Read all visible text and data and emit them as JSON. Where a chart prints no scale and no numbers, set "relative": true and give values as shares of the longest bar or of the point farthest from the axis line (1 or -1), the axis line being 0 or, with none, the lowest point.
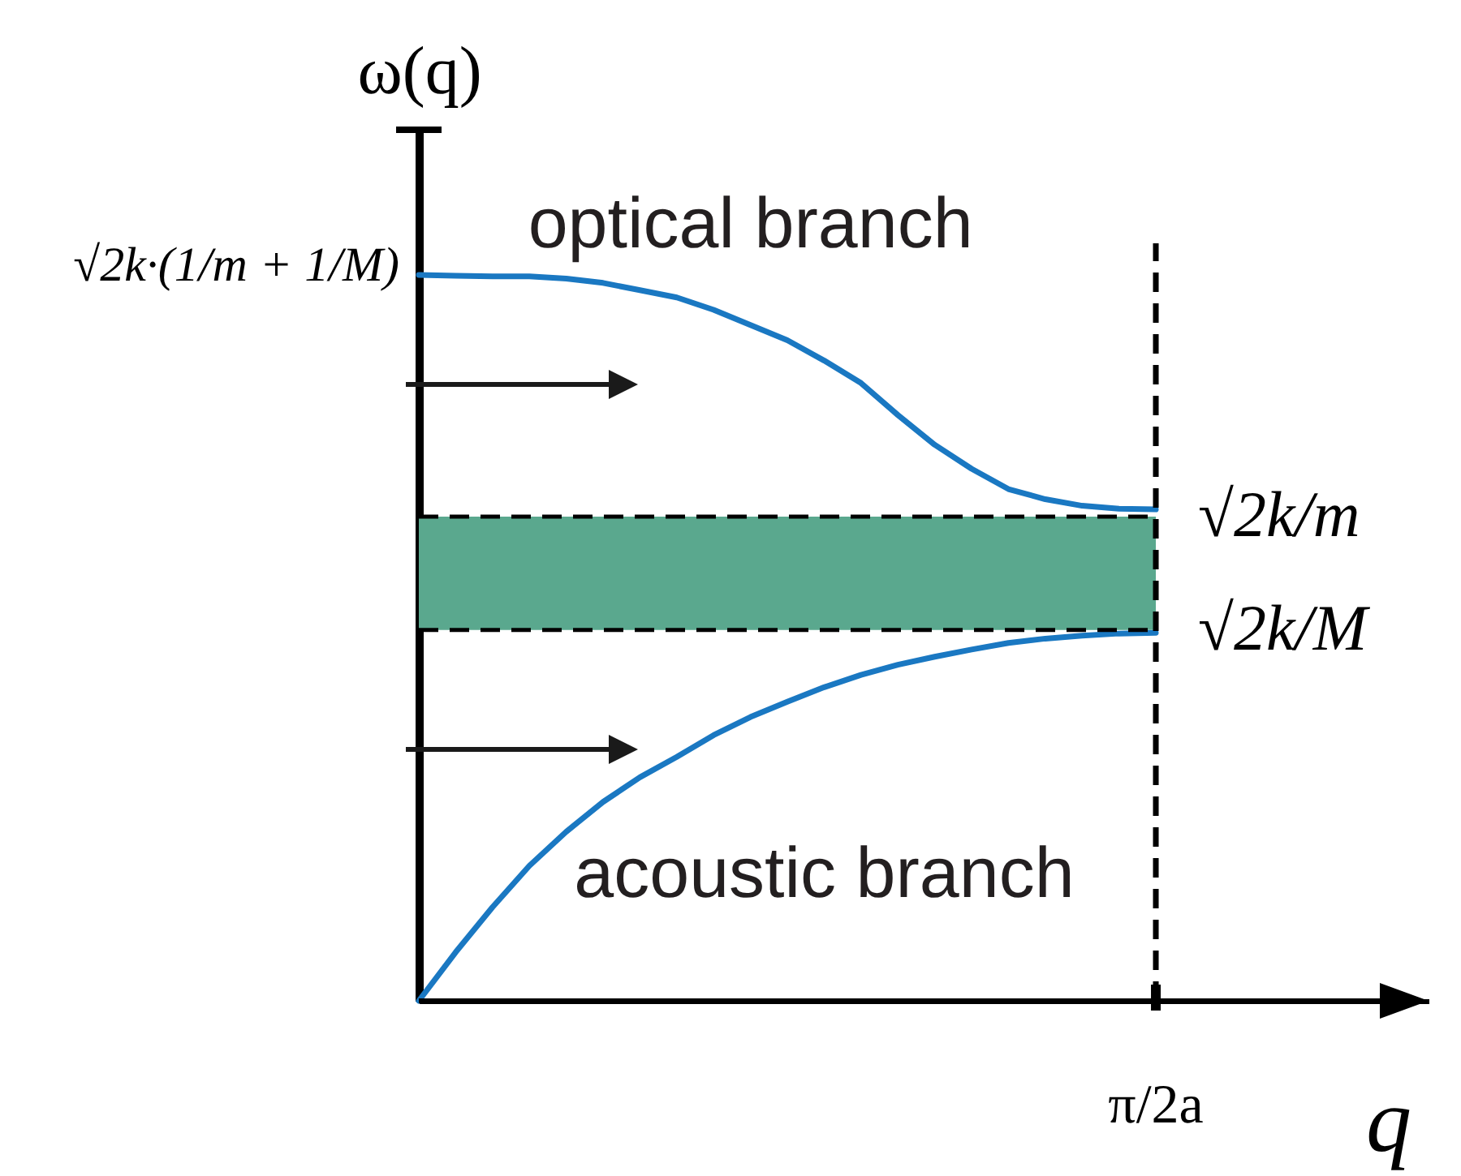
{
  "chart_data": {
    "type": "line",
    "relative": true,
    "xlabel": "q",
    "ylabel": "ω(q)",
    "categories": [
      null,
      null,
      null,
      null,
      null,
      null,
      null,
      null,
      null,
      null,
      null,
      null,
      null,
      null,
      null,
      null,
      null,
      null,
      null,
      null,
      null
    ],
    "series": [
      {
        "name": "optical branch",
        "color": "#1a78c2",
        "values": [
          1.0,
          0.999,
          0.998,
          0.998,
          0.995,
          0.989,
          0.979,
          0.969,
          0.952,
          0.931,
          0.91,
          0.882,
          0.851,
          0.807,
          0.766,
          0.733,
          0.705,
          0.691,
          0.682,
          0.678,
          0.677
        ]
      },
      {
        "name": "acoustic branch",
        "color": "#1a78c2",
        "values": [
          0.0,
          0.067,
          0.129,
          0.186,
          0.233,
          0.274,
          0.308,
          0.336,
          0.366,
          0.391,
          0.412,
          0.432,
          0.449,
          0.463,
          0.474,
          0.484,
          0.493,
          0.499,
          0.503,
          0.506,
          0.507
        ]
      }
    ],
    "bands": [
      {
        "axis": "y",
        "from": 0.511,
        "to": 0.667,
        "color": "#5aa88e"
      }
    ],
    "ref_lines": [
      {
        "axis": "y",
        "value": 0.667,
        "label": "√2k/m",
        "line_style": "dashed",
        "color": "#000000"
      },
      {
        "axis": "y",
        "value": 0.511,
        "label": "√2k/M",
        "line_style": "dashed",
        "color": "#000000"
      }
    ],
    "annotations": [
      "√2k·(1/m + 1/M)",
      "π/2a"
    ],
    "line_style": "solid"
  }
}
